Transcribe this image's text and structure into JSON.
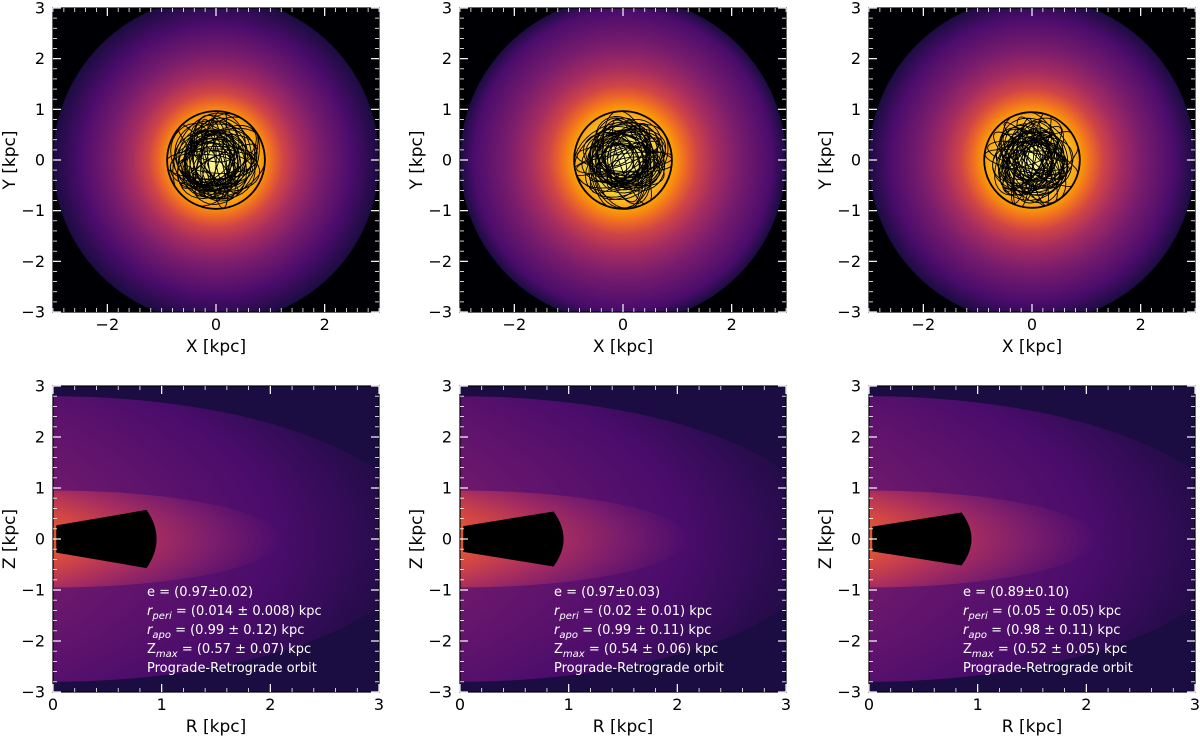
{
  "figure_colors": {
    "colormap": [
      "#000004",
      "#1b0c41",
      "#4a0c6b",
      "#781c6d",
      "#a52c60",
      "#cf4446",
      "#ed6925",
      "#fb9b06",
      "#f7d13d",
      "#fcffa4"
    ],
    "orbit": "#000000",
    "annotation": "#ffffff"
  },
  "chart_data": [
    {
      "type": "heatmap",
      "panel": "top-left",
      "xlabel": "X [kpc]",
      "ylabel": "Y [kpc]",
      "xlim": [
        -3,
        3
      ],
      "ylim": [
        -3,
        3
      ],
      "xticks": [
        {
          "v": -2,
          "t": "−2"
        },
        {
          "v": 0,
          "t": "0"
        },
        {
          "v": 2,
          "t": "2"
        }
      ],
      "yticks": [
        {
          "v": -3,
          "t": "−3"
        },
        {
          "v": -2,
          "t": "−2"
        },
        {
          "v": -1,
          "t": "−1"
        },
        {
          "v": 0,
          "t": "0"
        },
        {
          "v": 1,
          "t": "1"
        },
        {
          "v": 2,
          "t": "2"
        },
        {
          "v": 3,
          "t": "3"
        }
      ],
      "density_peak_radius_kpc": 1.0,
      "orbit_extent_kpc": 0.9
    },
    {
      "type": "heatmap",
      "panel": "top-middle",
      "xlabel": "X [kpc]",
      "ylabel": "Y [kpc]",
      "xlim": [
        -3,
        3
      ],
      "ylim": [
        -3,
        3
      ],
      "xticks": [
        {
          "v": -2,
          "t": "−2"
        },
        {
          "v": 0,
          "t": "0"
        },
        {
          "v": 2,
          "t": "2"
        }
      ],
      "yticks": [
        {
          "v": -3,
          "t": "−3"
        },
        {
          "v": -2,
          "t": "−2"
        },
        {
          "v": -1,
          "t": "−1"
        },
        {
          "v": 0,
          "t": "0"
        },
        {
          "v": 1,
          "t": "1"
        },
        {
          "v": 2,
          "t": "2"
        },
        {
          "v": 3,
          "t": "3"
        }
      ],
      "density_peak_radius_kpc": 1.1,
      "orbit_extent_kpc": 0.9
    },
    {
      "type": "heatmap",
      "panel": "top-right",
      "xlabel": "X [kpc]",
      "ylabel": "Y [kpc]",
      "xlim": [
        -3,
        3
      ],
      "ylim": [
        -3,
        3
      ],
      "xticks": [
        {
          "v": -2,
          "t": "−2"
        },
        {
          "v": 0,
          "t": "0"
        },
        {
          "v": 2,
          "t": "2"
        }
      ],
      "yticks": [
        {
          "v": -3,
          "t": "−3"
        },
        {
          "v": -2,
          "t": "−2"
        },
        {
          "v": -1,
          "t": "−1"
        },
        {
          "v": 0,
          "t": "0"
        },
        {
          "v": 1,
          "t": "1"
        },
        {
          "v": 2,
          "t": "2"
        },
        {
          "v": 3,
          "t": "3"
        }
      ],
      "density_peak_radius_kpc": 1.05,
      "orbit_extent_kpc": 0.88
    },
    {
      "type": "heatmap",
      "panel": "bottom-left",
      "xlabel": "R [kpc]",
      "ylabel": "Z [kpc]",
      "xlim": [
        0,
        3
      ],
      "ylim": [
        -3,
        3
      ],
      "xticks": [
        {
          "v": 0,
          "t": "0"
        },
        {
          "v": 1,
          "t": "1"
        },
        {
          "v": 2,
          "t": "2"
        },
        {
          "v": 3,
          "t": "3"
        }
      ],
      "yticks": [
        {
          "v": -3,
          "t": "−3"
        },
        {
          "v": -2,
          "t": "−2"
        },
        {
          "v": -1,
          "t": "−1"
        },
        {
          "v": 0,
          "t": "0"
        },
        {
          "v": 1,
          "t": "1"
        },
        {
          "v": 2,
          "t": "2"
        },
        {
          "v": 3,
          "t": "3"
        }
      ],
      "orbit_rmax_kpc": 0.99,
      "orbit_zmax_kpc": 0.57,
      "annotation": {
        "e": "e  =  (0.97±0.02)",
        "rperi_sym": "r",
        "rperi_sub": "peri",
        "rperi_val": " = (0.014 ± 0.008) kpc",
        "rapo_sym": "r",
        "rapo_sub": "apo",
        "rapo_val": " = (0.99 ± 0.12) kpc",
        "zmax_sym": "Z",
        "zmax_sub": "max",
        "zmax_val": " = (0.57 ± 0.07) kpc",
        "orbit_type": "Prograde-Retrograde orbit"
      }
    },
    {
      "type": "heatmap",
      "panel": "bottom-middle",
      "xlabel": "R [kpc]",
      "ylabel": "Z [kpc]",
      "xlim": [
        0,
        3
      ],
      "ylim": [
        -3,
        3
      ],
      "xticks": [
        {
          "v": 0,
          "t": "0"
        },
        {
          "v": 1,
          "t": "1"
        },
        {
          "v": 2,
          "t": "2"
        },
        {
          "v": 3,
          "t": "3"
        }
      ],
      "yticks": [
        {
          "v": -3,
          "t": "−3"
        },
        {
          "v": -2,
          "t": "−2"
        },
        {
          "v": -1,
          "t": "−1"
        },
        {
          "v": 0,
          "t": "0"
        },
        {
          "v": 1,
          "t": "1"
        },
        {
          "v": 2,
          "t": "2"
        },
        {
          "v": 3,
          "t": "3"
        }
      ],
      "orbit_rmax_kpc": 0.99,
      "orbit_zmax_kpc": 0.54,
      "annotation": {
        "e": "e  =  (0.97±0.03)",
        "rperi_sym": "r",
        "rperi_sub": "peri",
        "rperi_val": " = (0.02 ± 0.01) kpc",
        "rapo_sym": "r",
        "rapo_sub": "apo",
        "rapo_val": " = (0.99 ± 0.11) kpc",
        "zmax_sym": "Z",
        "zmax_sub": "max",
        "zmax_val": " = (0.54 ± 0.06) kpc",
        "orbit_type": "Prograde-Retrograde orbit"
      }
    },
    {
      "type": "heatmap",
      "panel": "bottom-right",
      "xlabel": "R [kpc]",
      "ylabel": "Z [kpc]",
      "xlim": [
        0,
        3
      ],
      "ylim": [
        -3,
        3
      ],
      "xticks": [
        {
          "v": 0,
          "t": "0"
        },
        {
          "v": 1,
          "t": "1"
        },
        {
          "v": 2,
          "t": "2"
        },
        {
          "v": 3,
          "t": "3"
        }
      ],
      "yticks": [
        {
          "v": -3,
          "t": "−3"
        },
        {
          "v": -2,
          "t": "−2"
        },
        {
          "v": -1,
          "t": "−1"
        },
        {
          "v": 0,
          "t": "0"
        },
        {
          "v": 1,
          "t": "1"
        },
        {
          "v": 2,
          "t": "2"
        },
        {
          "v": 3,
          "t": "3"
        }
      ],
      "orbit_rmax_kpc": 0.98,
      "orbit_zmax_kpc": 0.52,
      "annotation": {
        "e": "e  =  (0.89±0.10)",
        "rperi_sym": "r",
        "rperi_sub": "peri",
        "rperi_val": " = (0.05 ± 0.05) kpc",
        "rapo_sym": "r",
        "rapo_sub": "apo",
        "rapo_val": " = (0.98 ± 0.11) kpc",
        "zmax_sym": "Z",
        "zmax_sub": "max",
        "zmax_val": " = (0.52 ± 0.05) kpc",
        "orbit_type": "Prograde-Retrograde orbit"
      }
    }
  ]
}
